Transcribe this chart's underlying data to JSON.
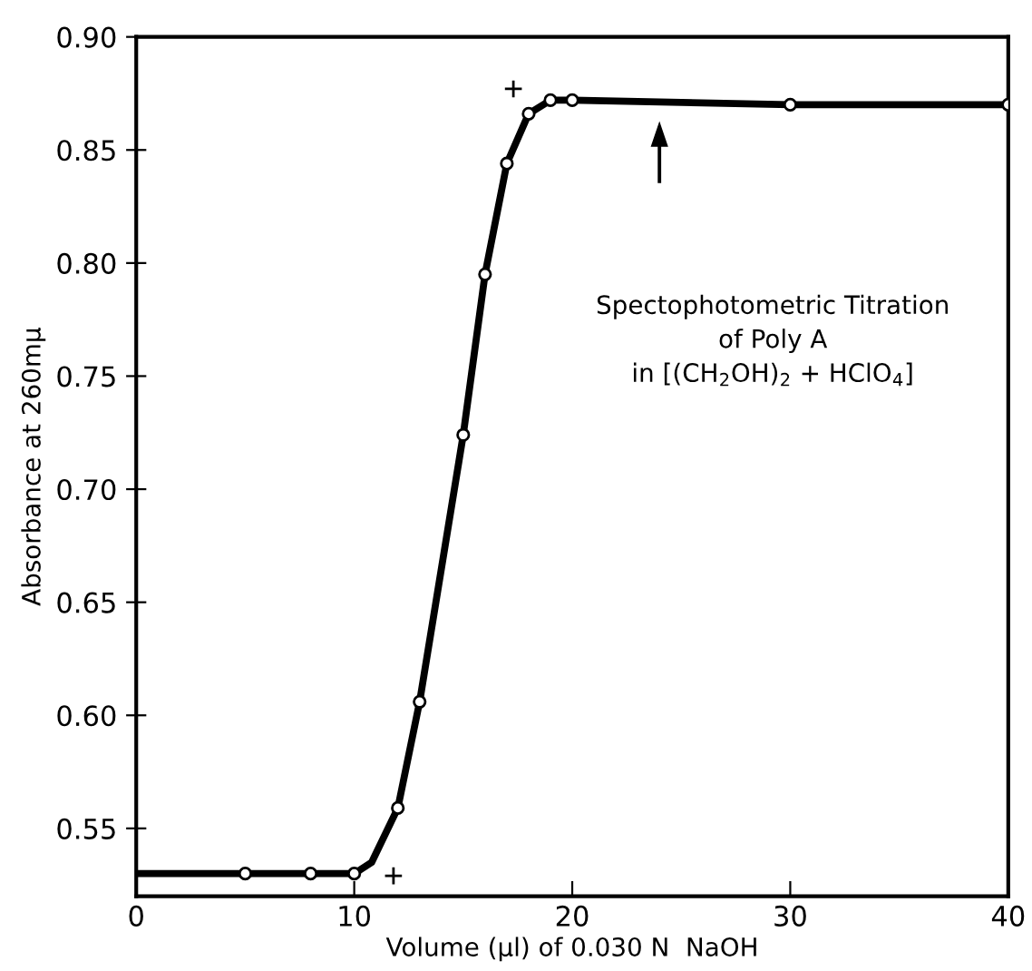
{
  "chart_data": {
    "type": "line",
    "xlabel": "Volume (µl) of 0.030 N  NaOH",
    "ylabel": "Absorbance at 260mμ",
    "xlim": [
      0,
      40
    ],
    "ylim": [
      0.52,
      0.9
    ],
    "xticks": [
      0,
      10,
      20,
      30,
      40
    ],
    "yticks": [
      0.55,
      {
        "value": 0.6,
        "label": "0.60"
      },
      0.65,
      {
        "value": 0.7,
        "label": "0.70"
      },
      0.75,
      {
        "value": 0.8,
        "label": "0.80"
      },
      0.85,
      {
        "value": 0.9,
        "label": "0.90"
      }
    ],
    "grid": false,
    "series": [
      {
        "color": "#000000",
        "marker": "none",
        "x": [
          0,
          10,
          10.8,
          12,
          13,
          15,
          16,
          17,
          18,
          19,
          20,
          30,
          40
        ],
        "values": [
          0.53,
          0.53,
          0.535,
          0.559,
          0.606,
          0.724,
          0.795,
          0.844,
          0.866,
          0.872,
          0.872,
          0.87,
          0.87
        ]
      },
      {
        "type": "scatter",
        "color": "#000000",
        "marker": "circle",
        "x": [
          5,
          8,
          10,
          12,
          13,
          15,
          16,
          17,
          18,
          19,
          20,
          30,
          40
        ],
        "values": [
          0.53,
          0.53,
          0.53,
          0.559,
          0.606,
          0.724,
          0.795,
          0.844,
          0.866,
          0.872,
          0.872,
          0.87,
          0.87
        ]
      },
      {
        "type": "scatter",
        "color": "#000000",
        "marker": "cross",
        "x": [
          11.8,
          17.3
        ],
        "values": [
          0.529,
          0.877
        ]
      }
    ],
    "annotations": [
      "Spectophotometric Titration\nof Poly A\nin [(CH$_{2}$OH)$_{2}$ + HClO$_{4}$]"
    ]
  }
}
